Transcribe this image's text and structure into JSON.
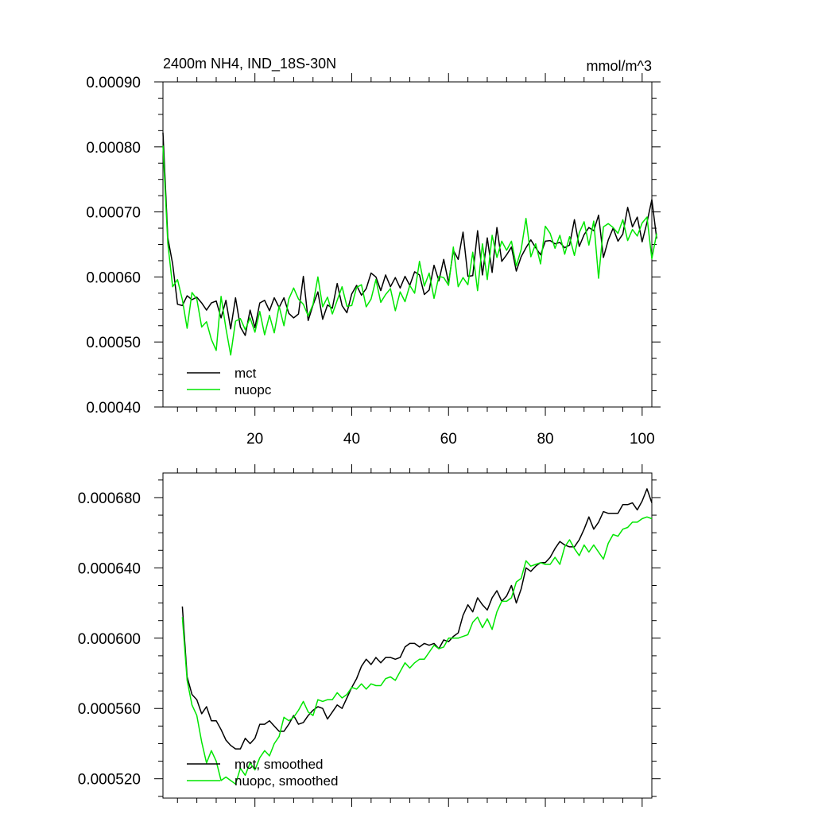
{
  "chart_data": [
    {
      "type": "line",
      "title": "2400m NH4, IND_18S-30N",
      "units": "mmol/m^3",
      "xlim": [
        1,
        102
      ],
      "ylim": [
        0.0004,
        0.0009
      ],
      "x_ticks": [
        20,
        40,
        60,
        80,
        100
      ],
      "y_ticks": [
        0.0004,
        0.0005,
        0.0006,
        0.0007,
        0.0008,
        0.0009
      ],
      "y_tick_labels": [
        "0.00040",
        "0.00050",
        "0.00060",
        "0.00070",
        "0.00080",
        "0.00090"
      ],
      "legend": [
        "mct",
        "nuopc"
      ],
      "legend_position": "bottom-left",
      "series": [
        {
          "name": "mct",
          "color": "#000000",
          "x_start": 1,
          "values": [
            0.000822,
            0.00066,
            0.00062,
            0.000558,
            0.000556,
            0.000571,
            0.000565,
            0.000569,
            0.00056,
            0.000549,
            0.00056,
            0.000563,
            0.000537,
            0.000564,
            0.00052,
            0.000568,
            0.000523,
            0.00051,
            0.000549,
            0.000522,
            0.00056,
            0.000564,
            0.000548,
            0.000568,
            0.000553,
            0.000568,
            0.000544,
            0.000537,
            0.000543,
            0.000601,
            0.000533,
            0.000557,
            0.000577,
            0.000535,
            0.000557,
            0.000552,
            0.00059,
            0.000556,
            0.000545,
            0.000574,
            0.000587,
            0.000572,
            0.000582,
            0.000606,
            0.0006,
            0.000579,
            0.000603,
            0.000585,
            0.000599,
            0.000583,
            0.000601,
            0.000587,
            0.000608,
            0.000603,
            0.000573,
            0.00058,
            0.000618,
            0.000594,
            0.000627,
            0.000591,
            0.000641,
            0.000627,
            0.000669,
            0.000601,
            0.000602,
            0.000671,
            0.000603,
            0.00066,
            0.000607,
            0.000676,
            0.000624,
            0.000634,
            0.000646,
            0.000609,
            0.000631,
            0.000645,
            0.000657,
            0.000645,
            0.000634,
            0.000655,
            0.000656,
            0.000651,
            0.000653,
            0.000645,
            0.000649,
            0.000688,
            0.000647,
            0.000665,
            0.000676,
            0.000671,
            0.000695,
            0.00063,
            0.000657,
            0.000675,
            0.000655,
            0.000666,
            0.000707,
            0.000677,
            0.000692,
            0.000654,
            0.000684,
            0.000719,
            0.000659
          ]
        },
        {
          "name": "nuopc",
          "color": "#00e600",
          "x_start": 1,
          "values": [
            0.000802,
            0.000652,
            0.000585,
            0.000596,
            0.000565,
            0.000521,
            0.000576,
            0.000566,
            0.000523,
            0.000531,
            0.000504,
            0.000487,
            0.00057,
            0.000521,
            0.00048,
            0.000532,
            0.000536,
            0.000519,
            0.000537,
            0.000515,
            0.000547,
            0.000511,
            0.000541,
            0.000514,
            0.000555,
            0.000525,
            0.000566,
            0.000583,
            0.000566,
            0.000558,
            0.00054,
            0.000558,
            0.0006,
            0.000554,
            0.000569,
            0.000543,
            0.000564,
            0.000585,
            0.000555,
            0.000556,
            0.000584,
            0.000588,
            0.000554,
            0.000566,
            0.000596,
            0.000561,
            0.000573,
            0.000582,
            0.000548,
            0.000577,
            0.000562,
            0.000587,
            0.000575,
            0.000624,
            0.000586,
            0.000606,
            0.000567,
            0.000601,
            0.000599,
            0.000587,
            0.000646,
            0.000585,
            0.000599,
            0.000588,
            0.000638,
            0.000579,
            0.000651,
            0.000596,
            0.000664,
            0.00063,
            0.000655,
            0.000641,
            0.000655,
            0.000617,
            0.000642,
            0.00069,
            0.000631,
            0.000651,
            0.00062,
            0.000678,
            0.000667,
            0.000644,
            0.000664,
            0.000635,
            0.000662,
            0.000633,
            0.000668,
            0.000685,
            0.000649,
            0.000686,
            0.000598,
            0.000677,
            0.000682,
            0.000676,
            0.000667,
            0.000688,
            0.000656,
            0.000673,
            0.000663,
            0.000683,
            0.000692,
            0.000628,
            0.000667
          ]
        }
      ]
    },
    {
      "type": "line",
      "xlim": [
        1,
        102
      ],
      "ylim": [
        0.000509,
        0.000694
      ],
      "x_ticks": [
        20,
        40,
        60,
        80,
        100
      ],
      "y_ticks": [
        0.00052,
        0.00056,
        0.0006,
        0.00064,
        0.00068
      ],
      "y_tick_labels": [
        "0.000520",
        "0.000560",
        "0.000600",
        "0.000640",
        "0.000680"
      ],
      "legend": [
        "mct, smoothed",
        "nuopc, smoothed"
      ],
      "legend_position": "bottom-left",
      "series": [
        {
          "name": "mct, smoothed",
          "color": "#000000",
          "x_start": 5,
          "values": [
            0.000618,
            0.000578,
            0.000568,
            0.000565,
            0.000557,
            0.000561,
            0.000553,
            0.000553,
            0.000548,
            0.000542,
            0.000539,
            0.000537,
            0.000537,
            0.000543,
            0.00054,
            0.000543,
            0.000551,
            0.000551,
            0.000553,
            0.00055,
            0.000547,
            0.000547,
            0.000551,
            0.000556,
            0.000551,
            0.000552,
            0.000556,
            0.000559,
            0.000561,
            0.00056,
            0.000554,
            0.000558,
            0.000562,
            0.00056,
            0.000566,
            0.000572,
            0.000577,
            0.000584,
            0.000588,
            0.000585,
            0.000589,
            0.000586,
            0.000589,
            0.000589,
            0.000588,
            0.000589,
            0.000595,
            0.000597,
            0.000597,
            0.000595,
            0.000597,
            0.000596,
            0.000597,
            0.000594,
            0.000599,
            0.000598,
            0.000601,
            0.000603,
            0.000613,
            0.000619,
            0.000615,
            0.000623,
            0.000619,
            0.000616,
            0.000623,
            0.000627,
            0.000621,
            0.000624,
            0.00063,
            0.00062,
            0.000628,
            0.00064,
            0.000638,
            0.000641,
            0.000643,
            0.000643,
            0.000646,
            0.000651,
            0.000655,
            0.000653,
            0.000652,
            0.000652,
            0.000656,
            0.000662,
            0.000669,
            0.000662,
            0.000666,
            0.000672,
            0.000671,
            0.000671,
            0.000671,
            0.000676,
            0.000676,
            0.000677,
            0.000673,
            0.000678,
            0.000685,
            0.000677
          ]
        },
        {
          "name": "nuopc, smoothed",
          "color": "#00e600",
          "x_start": 5,
          "values": [
            0.000612,
            0.000576,
            0.000562,
            0.000556,
            0.000541,
            0.000529,
            0.000536,
            0.00053,
            0.000519,
            0.000521,
            0.000519,
            0.000517,
            0.000526,
            0.000522,
            0.000529,
            0.000525,
            0.000532,
            0.000536,
            0.000533,
            0.00054,
            0.000544,
            0.000555,
            0.000553,
            0.000555,
            0.000559,
            0.000564,
            0.000558,
            0.000556,
            0.000565,
            0.000564,
            0.000565,
            0.000565,
            0.000569,
            0.000566,
            0.000568,
            0.000572,
            0.000571,
            0.000574,
            0.000571,
            0.000574,
            0.000573,
            0.000573,
            0.000577,
            0.000578,
            0.000576,
            0.000581,
            0.000586,
            0.000583,
            0.000586,
            0.000588,
            0.000588,
            0.000592,
            0.000596,
            0.000594,
            0.000595,
            0.0006,
            0.0006,
            0.0006,
            0.000601,
            0.000602,
            0.000609,
            0.000612,
            0.000606,
            0.000611,
            0.000605,
            0.000615,
            0.000621,
            0.000621,
            0.000623,
            0.000632,
            0.000634,
            0.000644,
            0.000641,
            0.000642,
            0.000643,
            0.000642,
            0.000642,
            0.000646,
            0.000642,
            0.000652,
            0.000656,
            0.000651,
            0.000647,
            0.000653,
            0.000649,
            0.000653,
            0.000649,
            0.000645,
            0.000654,
            0.000659,
            0.000658,
            0.000662,
            0.000663,
            0.000666,
            0.000666,
            0.000668,
            0.000669,
            0.000668
          ]
        }
      ]
    }
  ]
}
